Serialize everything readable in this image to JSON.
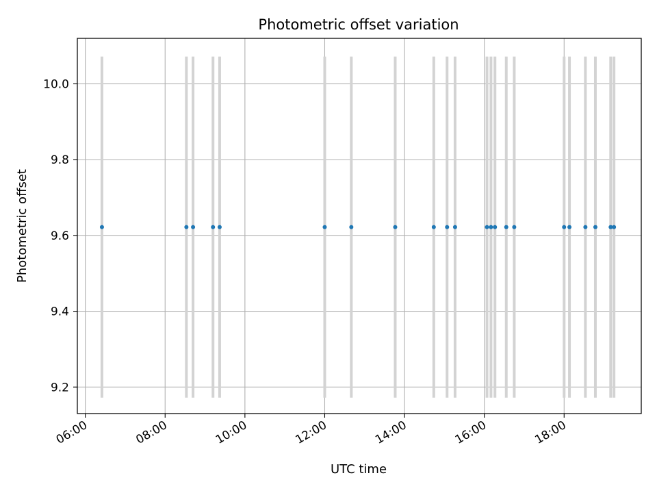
{
  "chart_data": {
    "type": "scatter",
    "title": "Photometric offset variation",
    "xlabel": "UTC time",
    "ylabel": "Photometric offset",
    "xlim": [
      "05:48",
      "19:56"
    ],
    "ylim": [
      9.13,
      10.12
    ],
    "x_ticks": [
      "06:00",
      "08:00",
      "10:00",
      "12:00",
      "14:00",
      "16:00",
      "18:00"
    ],
    "y_ticks": [
      "9.2",
      "9.4",
      "9.6",
      "9.8",
      "10.0"
    ],
    "grid": true,
    "marker_color": "#1f77b4",
    "errorbar_color": "#d3d3d3",
    "series": [
      {
        "x": [
          "06:25",
          "08:32",
          "08:42",
          "09:12",
          "09:22",
          "12:00",
          "12:40",
          "13:46",
          "14:44",
          "15:04",
          "15:16",
          "16:04",
          "16:10",
          "16:16",
          "16:33",
          "16:45",
          "18:00",
          "18:08",
          "18:32",
          "18:47",
          "19:10",
          "19:15"
        ],
        "y": [
          9.622,
          9.622,
          9.622,
          9.622,
          9.622,
          9.622,
          9.622,
          9.622,
          9.622,
          9.622,
          9.622,
          9.622,
          9.622,
          9.622,
          9.622,
          9.622,
          9.622,
          9.622,
          9.622,
          9.622,
          9.622,
          9.622
        ],
        "yerr": [
          0.45,
          0.45,
          0.45,
          0.45,
          0.45,
          0.45,
          0.45,
          0.45,
          0.45,
          0.45,
          0.45,
          0.45,
          0.45,
          0.45,
          0.45,
          0.45,
          0.45,
          0.45,
          0.45,
          0.45,
          0.45,
          0.45
        ]
      }
    ]
  }
}
